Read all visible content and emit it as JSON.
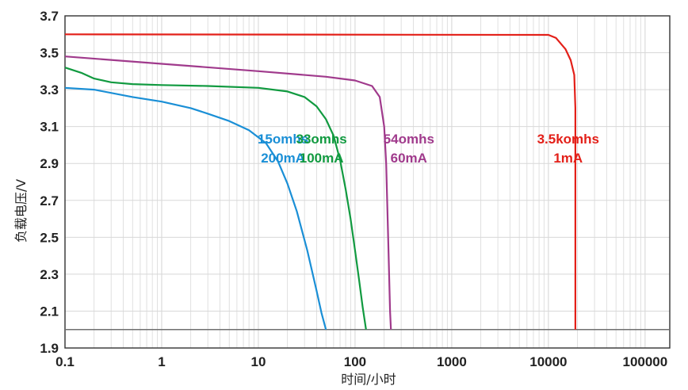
{
  "chart_data": {
    "type": "line",
    "xscale": "log",
    "xlim": [
      0.1,
      180000
    ],
    "ylim": [
      1.9,
      3.7
    ],
    "xlabel": "时间/小时",
    "ylabel": "负载电压/V",
    "x_ticks": [
      0.1,
      1,
      10,
      100,
      1000,
      10000,
      100000
    ],
    "x_tick_labels": [
      "0.1",
      "1",
      "10",
      "100",
      "1000",
      "10000",
      "100000"
    ],
    "y_ticks": [
      1.9,
      2.1,
      2.3,
      2.5,
      2.7,
      2.9,
      3.1,
      3.3,
      3.5,
      3.7
    ],
    "y_tick_labels": [
      "1.9",
      "2.1",
      "2.3",
      "2.5",
      "2.7",
      "2.9",
      "3.1",
      "3.3",
      "3.5",
      "3.7"
    ],
    "grid": true,
    "cutoff_voltage": 2.0,
    "colors": {
      "cutoff": "#707070",
      "frame": "#333333",
      "grid": "#d8d8d8"
    },
    "series": [
      {
        "labels": [
          "15omhs",
          "200mA"
        ],
        "color": "#1a8fd6",
        "label_at": [
          18,
          2.93
        ],
        "points": [
          [
            0.1,
            3.31
          ],
          [
            0.2,
            3.3
          ],
          [
            0.5,
            3.26
          ],
          [
            1,
            3.235
          ],
          [
            2,
            3.2
          ],
          [
            3,
            3.17
          ],
          [
            5,
            3.13
          ],
          [
            8,
            3.08
          ],
          [
            12,
            3.01
          ],
          [
            16,
            2.91
          ],
          [
            20,
            2.79
          ],
          [
            25,
            2.64
          ],
          [
            32,
            2.43
          ],
          [
            40,
            2.21
          ],
          [
            45,
            2.09
          ],
          [
            50,
            2.0
          ]
        ]
      },
      {
        "labels": [
          "33omhs",
          "100mA"
        ],
        "color": "#119a40",
        "label_at": [
          45,
          2.93
        ],
        "points": [
          [
            0.1,
            3.42
          ],
          [
            0.15,
            3.39
          ],
          [
            0.2,
            3.36
          ],
          [
            0.3,
            3.34
          ],
          [
            0.5,
            3.33
          ],
          [
            1,
            3.325
          ],
          [
            3,
            3.32
          ],
          [
            10,
            3.31
          ],
          [
            20,
            3.29
          ],
          [
            30,
            3.26
          ],
          [
            40,
            3.21
          ],
          [
            50,
            3.14
          ],
          [
            60,
            3.05
          ],
          [
            70,
            2.92
          ],
          [
            80,
            2.76
          ],
          [
            90,
            2.6
          ],
          [
            100,
            2.43
          ],
          [
            110,
            2.27
          ],
          [
            120,
            2.12
          ],
          [
            130,
            2.0
          ]
        ]
      },
      {
        "labels": [
          "54omhs",
          "60mA"
        ],
        "color": "#a03a8c",
        "label_at": [
          360,
          2.93
        ],
        "points": [
          [
            0.1,
            3.48
          ],
          [
            1,
            3.44
          ],
          [
            10,
            3.4
          ],
          [
            50,
            3.37
          ],
          [
            100,
            3.35
          ],
          [
            150,
            3.32
          ],
          [
            180,
            3.26
          ],
          [
            200,
            3.1
          ],
          [
            210,
            2.9
          ],
          [
            220,
            2.5
          ],
          [
            230,
            2.1
          ],
          [
            235,
            2.0
          ]
        ]
      },
      {
        "labels": [
          "3.5komhs",
          "1mA"
        ],
        "color": "#e32019",
        "label_at": [
          16000,
          2.93
        ],
        "points": [
          [
            0.1,
            3.6
          ],
          [
            10000,
            3.597
          ],
          [
            12000,
            3.58
          ],
          [
            15000,
            3.52
          ],
          [
            17000,
            3.46
          ],
          [
            18500,
            3.38
          ],
          [
            19000,
            3.2
          ],
          [
            19000,
            2.0
          ]
        ]
      }
    ]
  }
}
